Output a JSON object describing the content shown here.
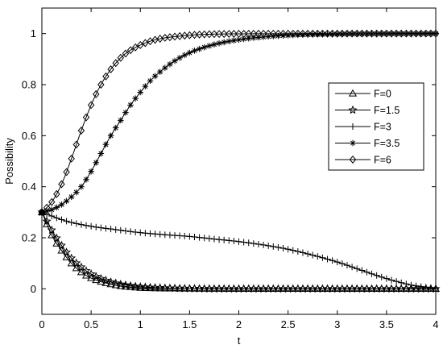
{
  "chart_data": {
    "type": "line",
    "title": "",
    "xlabel": "t",
    "ylabel": "Possibility",
    "xlim": [
      0,
      4
    ],
    "ylim": [
      -0.1,
      1.1
    ],
    "x_ticks": [
      0,
      0.5,
      1,
      1.5,
      2,
      2.5,
      3,
      3.5,
      4
    ],
    "y_ticks": [
      0,
      0.2,
      0.4,
      0.6,
      0.8,
      1
    ],
    "x_tick_labels": [
      "0",
      "0.5",
      "1",
      "1.5",
      "2",
      "2.5",
      "3",
      "3.5",
      "4"
    ],
    "y_tick_labels": [
      "0",
      "0.2",
      "0.4",
      "0.6",
      "0.8",
      "1"
    ],
    "grid": false,
    "legend_position": "right",
    "marker_step": 0.05,
    "series": [
      {
        "name": "F=0",
        "marker": "triangle",
        "points": [
          [
            0,
            0.3
          ],
          [
            0.1,
            0.21
          ],
          [
            0.2,
            0.15
          ],
          [
            0.3,
            0.1
          ],
          [
            0.4,
            0.065
          ],
          [
            0.5,
            0.042
          ],
          [
            0.6,
            0.028
          ],
          [
            0.7,
            0.018
          ],
          [
            0.8,
            0.011
          ],
          [
            0.9,
            0.007
          ],
          [
            1.0,
            0.004
          ],
          [
            1.2,
            0.002
          ],
          [
            1.5,
            0.001
          ],
          [
            2.0,
            0.0
          ],
          [
            4.0,
            0.0
          ]
        ]
      },
      {
        "name": "F=1.5",
        "marker": "hexagram",
        "points": [
          [
            0,
            0.3
          ],
          [
            0.1,
            0.23
          ],
          [
            0.2,
            0.17
          ],
          [
            0.3,
            0.12
          ],
          [
            0.4,
            0.085
          ],
          [
            0.5,
            0.058
          ],
          [
            0.6,
            0.04
          ],
          [
            0.7,
            0.027
          ],
          [
            0.8,
            0.018
          ],
          [
            0.9,
            0.012
          ],
          [
            1.0,
            0.008
          ],
          [
            1.2,
            0.004
          ],
          [
            1.5,
            0.001
          ],
          [
            2.0,
            0.0
          ],
          [
            4.0,
            0.0
          ]
        ]
      },
      {
        "name": "F=3",
        "marker": "plus",
        "points": [
          [
            0,
            0.3
          ],
          [
            0.25,
            0.265
          ],
          [
            0.5,
            0.245
          ],
          [
            0.75,
            0.232
          ],
          [
            1.0,
            0.22
          ],
          [
            1.25,
            0.212
          ],
          [
            1.5,
            0.205
          ],
          [
            1.75,
            0.195
          ],
          [
            2.0,
            0.185
          ],
          [
            2.25,
            0.172
          ],
          [
            2.5,
            0.155
          ],
          [
            2.75,
            0.132
          ],
          [
            3.0,
            0.105
          ],
          [
            3.25,
            0.072
          ],
          [
            3.5,
            0.04
          ],
          [
            3.75,
            0.015
          ],
          [
            4.0,
            0.002
          ]
        ]
      },
      {
        "name": "F=3.5",
        "marker": "asterisk",
        "points": [
          [
            0,
            0.3
          ],
          [
            0.1,
            0.31
          ],
          [
            0.2,
            0.33
          ],
          [
            0.3,
            0.36
          ],
          [
            0.4,
            0.4
          ],
          [
            0.5,
            0.46
          ],
          [
            0.6,
            0.53
          ],
          [
            0.7,
            0.6
          ],
          [
            0.8,
            0.66
          ],
          [
            0.9,
            0.72
          ],
          [
            1.0,
            0.77
          ],
          [
            1.1,
            0.815
          ],
          [
            1.2,
            0.85
          ],
          [
            1.3,
            0.88
          ],
          [
            1.4,
            0.905
          ],
          [
            1.5,
            0.925
          ],
          [
            1.6,
            0.94
          ],
          [
            1.7,
            0.952
          ],
          [
            1.8,
            0.962
          ],
          [
            2.0,
            0.976
          ],
          [
            2.2,
            0.985
          ],
          [
            2.5,
            0.993
          ],
          [
            3.0,
            0.998
          ],
          [
            4.0,
            1.0
          ]
        ]
      },
      {
        "name": "F=6",
        "marker": "diamond",
        "points": [
          [
            0,
            0.3
          ],
          [
            0.1,
            0.34
          ],
          [
            0.2,
            0.41
          ],
          [
            0.3,
            0.51
          ],
          [
            0.4,
            0.62
          ],
          [
            0.5,
            0.72
          ],
          [
            0.6,
            0.8
          ],
          [
            0.7,
            0.86
          ],
          [
            0.8,
            0.905
          ],
          [
            0.9,
            0.935
          ],
          [
            1.0,
            0.955
          ],
          [
            1.1,
            0.97
          ],
          [
            1.2,
            0.98
          ],
          [
            1.4,
            0.99
          ],
          [
            1.6,
            0.996
          ],
          [
            2.0,
            0.999
          ],
          [
            4.0,
            1.0
          ]
        ]
      }
    ]
  }
}
